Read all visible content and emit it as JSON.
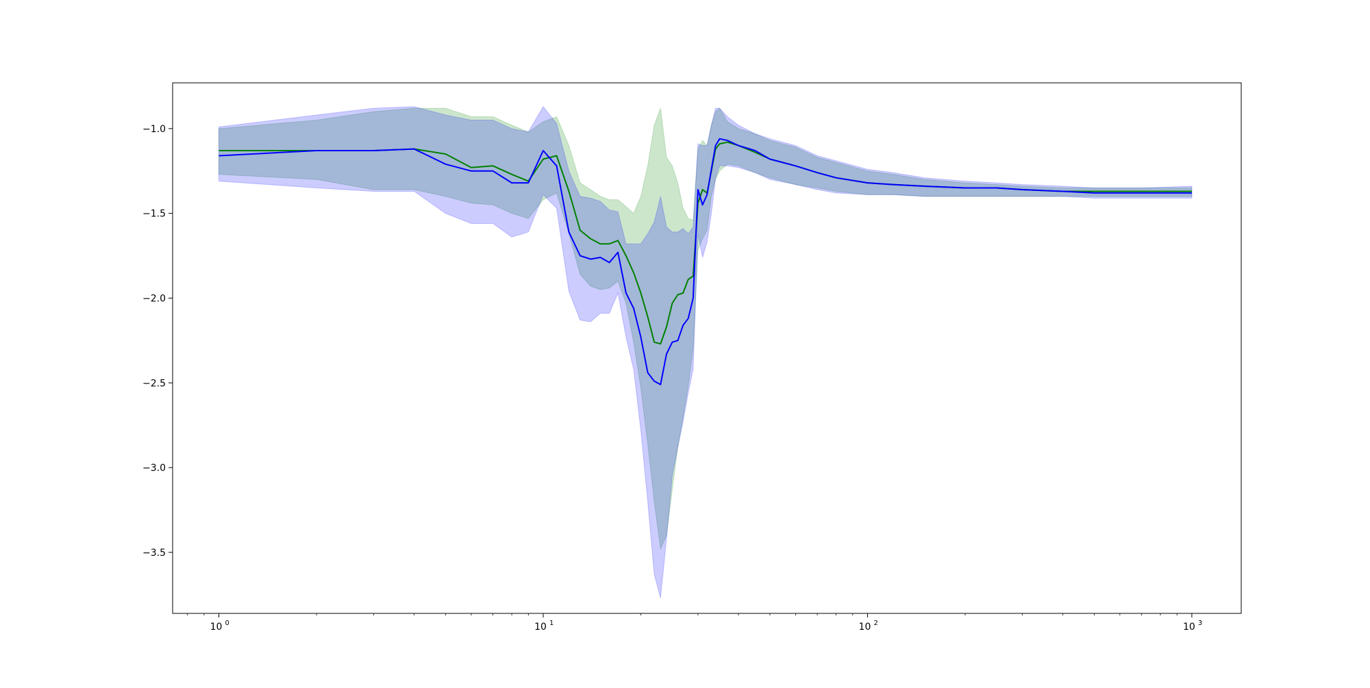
{
  "chart_data": {
    "type": "line",
    "title": "",
    "xlabel": "",
    "ylabel": "",
    "xscale": "log",
    "xlim": [
      0.72,
      1420
    ],
    "ylim": [
      -3.86,
      -0.73
    ],
    "grid": false,
    "x_ticks": [
      {
        "base": "10",
        "exp": "0",
        "value": 1
      },
      {
        "base": "10",
        "exp": "1",
        "value": 10
      },
      {
        "base": "10",
        "exp": "2",
        "value": 100
      },
      {
        "base": "10",
        "exp": "3",
        "value": 1000
      }
    ],
    "y_ticks": [
      {
        "label": "−1.0",
        "value": -1.0
      },
      {
        "label": "−1.5",
        "value": -1.5
      },
      {
        "label": "−2.0",
        "value": -2.0
      },
      {
        "label": "−2.5",
        "value": -2.5
      },
      {
        "label": "−3.0",
        "value": -3.0
      },
      {
        "label": "−3.5",
        "value": -3.5
      }
    ],
    "series": [
      {
        "color": "#008000",
        "band_color": "#008000",
        "band_opacity": 0.2,
        "x": [
          1,
          2,
          3,
          4,
          5,
          6,
          7,
          8,
          9,
          10,
          11,
          12,
          13,
          14,
          15,
          16,
          17,
          18,
          19,
          20,
          21,
          22,
          23,
          24,
          25,
          26,
          27,
          28,
          29,
          30,
          31,
          32,
          33,
          34,
          35,
          37,
          40,
          45,
          50,
          60,
          70,
          80,
          100,
          120,
          150,
          200,
          250,
          300,
          400,
          500,
          700,
          1000
        ],
        "y": [
          -1.13,
          -1.13,
          -1.13,
          -1.12,
          -1.15,
          -1.23,
          -1.22,
          -1.27,
          -1.31,
          -1.18,
          -1.16,
          -1.37,
          -1.6,
          -1.65,
          -1.68,
          -1.68,
          -1.66,
          -1.75,
          -1.85,
          -1.97,
          -2.11,
          -2.26,
          -2.27,
          -2.17,
          -2.03,
          -1.98,
          -1.97,
          -1.89,
          -1.87,
          -1.44,
          -1.36,
          -1.38,
          -1.25,
          -1.12,
          -1.09,
          -1.08,
          -1.1,
          -1.14,
          -1.18,
          -1.22,
          -1.26,
          -1.29,
          -1.32,
          -1.33,
          -1.34,
          -1.35,
          -1.35,
          -1.36,
          -1.37,
          -1.37,
          -1.37,
          -1.37
        ],
        "lower": [
          -1.27,
          -1.3,
          -1.36,
          -1.36,
          -1.4,
          -1.44,
          -1.45,
          -1.5,
          -1.53,
          -1.42,
          -1.38,
          -1.62,
          -1.86,
          -1.93,
          -1.95,
          -1.94,
          -1.9,
          -2.03,
          -2.26,
          -2.53,
          -2.86,
          -3.2,
          -3.48,
          -3.4,
          -3.13,
          -2.88,
          -2.7,
          -2.52,
          -2.3,
          -1.72,
          -1.65,
          -1.6,
          -1.4,
          -1.3,
          -1.25,
          -1.21,
          -1.22,
          -1.26,
          -1.29,
          -1.33,
          -1.35,
          -1.37,
          -1.39,
          -1.39,
          -1.4,
          -1.4,
          -1.4,
          -1.4,
          -1.4,
          -1.4,
          -1.4,
          -1.4
        ],
        "upper": [
          -1.0,
          -0.95,
          -0.9,
          -0.88,
          -0.88,
          -0.93,
          -0.93,
          -0.98,
          -1.02,
          -0.96,
          -0.93,
          -1.1,
          -1.32,
          -1.36,
          -1.4,
          -1.42,
          -1.42,
          -1.46,
          -1.5,
          -1.4,
          -1.22,
          -0.98,
          -0.88,
          -1.17,
          -1.22,
          -1.32,
          -1.47,
          -1.53,
          -1.54,
          -1.12,
          -1.07,
          -1.1,
          -0.98,
          -0.9,
          -0.88,
          -0.96,
          -1.0,
          -1.03,
          -1.07,
          -1.11,
          -1.17,
          -1.2,
          -1.25,
          -1.27,
          -1.3,
          -1.32,
          -1.33,
          -1.34,
          -1.35,
          -1.35,
          -1.35,
          -1.35
        ]
      },
      {
        "color": "#0000ff",
        "band_color": "#0000ff",
        "band_opacity": 0.2,
        "x": [
          1,
          2,
          3,
          4,
          5,
          6,
          7,
          8,
          9,
          10,
          11,
          12,
          13,
          14,
          15,
          16,
          17,
          18,
          19,
          20,
          21,
          22,
          23,
          24,
          25,
          26,
          27,
          28,
          29,
          30,
          31,
          32,
          33,
          34,
          35,
          37,
          40,
          45,
          50,
          60,
          70,
          80,
          100,
          120,
          150,
          200,
          250,
          300,
          400,
          500,
          700,
          1000
        ],
        "y": [
          -1.16,
          -1.13,
          -1.13,
          -1.12,
          -1.21,
          -1.25,
          -1.25,
          -1.32,
          -1.32,
          -1.13,
          -1.22,
          -1.61,
          -1.75,
          -1.77,
          -1.76,
          -1.79,
          -1.73,
          -1.97,
          -2.06,
          -2.23,
          -2.44,
          -2.49,
          -2.51,
          -2.33,
          -2.26,
          -2.25,
          -2.16,
          -2.12,
          -2.0,
          -1.36,
          -1.45,
          -1.39,
          -1.24,
          -1.1,
          -1.06,
          -1.07,
          -1.1,
          -1.13,
          -1.18,
          -1.22,
          -1.26,
          -1.29,
          -1.32,
          -1.33,
          -1.34,
          -1.35,
          -1.35,
          -1.36,
          -1.37,
          -1.38,
          -1.38,
          -1.38
        ],
        "lower": [
          -1.31,
          -1.35,
          -1.37,
          -1.37,
          -1.5,
          -1.56,
          -1.56,
          -1.64,
          -1.61,
          -1.39,
          -1.47,
          -1.96,
          -2.13,
          -2.14,
          -2.09,
          -2.09,
          -1.97,
          -2.23,
          -2.42,
          -2.78,
          -3.2,
          -3.63,
          -3.77,
          -3.42,
          -3.05,
          -2.88,
          -2.73,
          -2.56,
          -2.42,
          -1.62,
          -1.76,
          -1.67,
          -1.5,
          -1.29,
          -1.22,
          -1.22,
          -1.23,
          -1.26,
          -1.3,
          -1.33,
          -1.36,
          -1.38,
          -1.39,
          -1.39,
          -1.4,
          -1.4,
          -1.4,
          -1.4,
          -1.4,
          -1.41,
          -1.41,
          -1.41
        ],
        "upper": [
          -0.99,
          -0.92,
          -0.88,
          -0.87,
          -0.92,
          -0.95,
          -0.95,
          -1.0,
          -1.02,
          -0.87,
          -0.97,
          -1.25,
          -1.4,
          -1.41,
          -1.43,
          -1.48,
          -1.49,
          -1.68,
          -1.68,
          -1.68,
          -1.62,
          -1.55,
          -1.4,
          -1.58,
          -1.61,
          -1.61,
          -1.59,
          -1.62,
          -1.58,
          -1.09,
          -1.1,
          -1.1,
          -0.98,
          -0.88,
          -0.88,
          -0.93,
          -0.98,
          -1.03,
          -1.06,
          -1.1,
          -1.16,
          -1.19,
          -1.24,
          -1.26,
          -1.29,
          -1.31,
          -1.32,
          -1.33,
          -1.34,
          -1.35,
          -1.35,
          -1.34
        ]
      }
    ]
  }
}
